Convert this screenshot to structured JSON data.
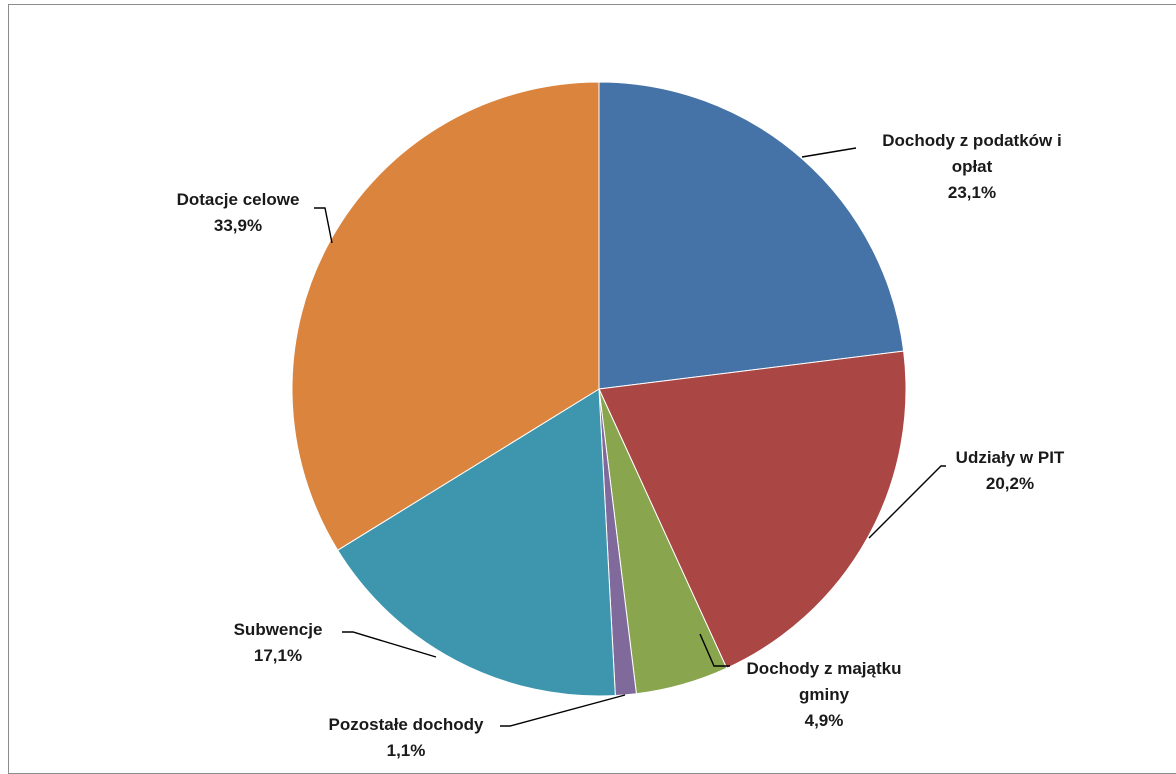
{
  "chart_data": {
    "type": "pie",
    "title": "",
    "unit": "%",
    "slices": [
      {
        "label_lines": [
          "Dochody z podatków i",
          "opłat"
        ],
        "value": 23.1,
        "value_label": "23,1%",
        "color": "#4572A7"
      },
      {
        "label_lines": [
          "Udziały w PIT"
        ],
        "value": 20.2,
        "value_label": "20,2%",
        "color": "#AA4643"
      },
      {
        "label_lines": [
          "Dochody z majątku",
          "gminy"
        ],
        "value": 4.9,
        "value_label": "4,9%",
        "color": "#89A54E"
      },
      {
        "label_lines": [
          "Pozostałe dochody"
        ],
        "value": 1.1,
        "value_label": "1,1%",
        "color": "#80699B"
      },
      {
        "label_lines": [
          "Subwencje"
        ],
        "value": 17.1,
        "value_label": "17,1%",
        "color": "#3D96AE"
      },
      {
        "label_lines": [
          "Dotacje celowe"
        ],
        "value": 33.9,
        "value_label": "33,9%",
        "color": "#DB843D"
      }
    ],
    "start_angle": "12 o'clock",
    "direction": "clockwise",
    "legend": "none",
    "data_labels": "outside with leader lines"
  }
}
